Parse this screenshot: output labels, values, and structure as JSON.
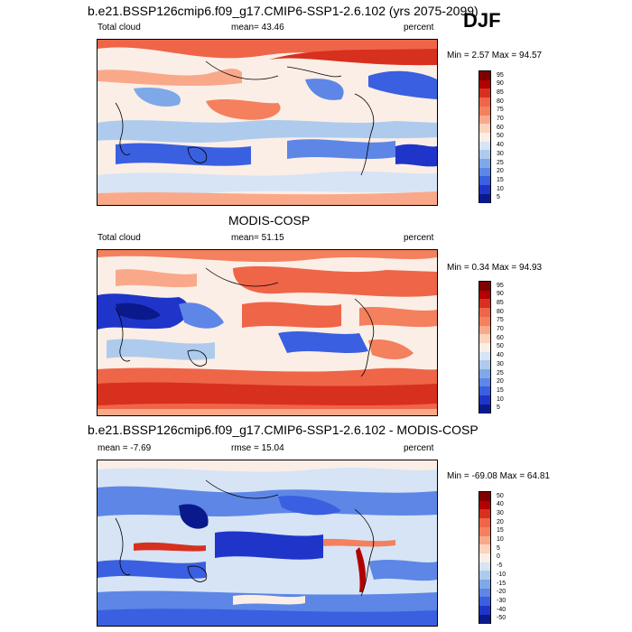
{
  "season": "DJF",
  "panels": [
    {
      "title": "b.e21.BSSP126cmip6.f09_g17.CMIP6-SSP1-2.6.102 (yrs 2075-2099)",
      "variable": "Total cloud",
      "stat1": "mean=  43.46",
      "stat2": "",
      "units": "percent",
      "minmax": "Min =  2.57 Max =  94.57",
      "colorbar": [
        "95",
        "90",
        "85",
        "80",
        "75",
        "70",
        "60",
        "50",
        "40",
        "30",
        "25",
        "20",
        "15",
        "10",
        "5"
      ]
    },
    {
      "title": "MODIS-COSP",
      "variable": "Total cloud",
      "stat1": "mean=  51.15",
      "stat2": "",
      "units": "percent",
      "minmax": "Min =  0.34 Max =  94.93",
      "colorbar": [
        "95",
        "90",
        "85",
        "80",
        "75",
        "70",
        "60",
        "50",
        "40",
        "30",
        "25",
        "20",
        "15",
        "10",
        "5"
      ]
    },
    {
      "title": "b.e21.BSSP126cmip6.f09_g17.CMIP6-SSP1-2.6.102 - MODIS-COSP",
      "variable": "",
      "stat1": "mean =  -7.69",
      "stat2": "rmse =  15.04",
      "units": "percent",
      "minmax": "Min = -69.08 Max =  64.81",
      "colorbar": [
        "50",
        "40",
        "30",
        "20",
        "15",
        "10",
        "5",
        "0",
        "-5",
        "-10",
        "-15",
        "-20",
        "-30",
        "-40",
        "-50"
      ]
    }
  ],
  "colors": {
    "scale": [
      "#7f0000",
      "#b30000",
      "#d7301f",
      "#ef6548",
      "#f4805e",
      "#f9a98a",
      "#fcd3bd",
      "#fbeee6",
      "#d6e4f5",
      "#aecbee",
      "#7fa8e8",
      "#5d86e6",
      "#3a5fe0",
      "#1f35c9",
      "#0a1a8c"
    ]
  }
}
